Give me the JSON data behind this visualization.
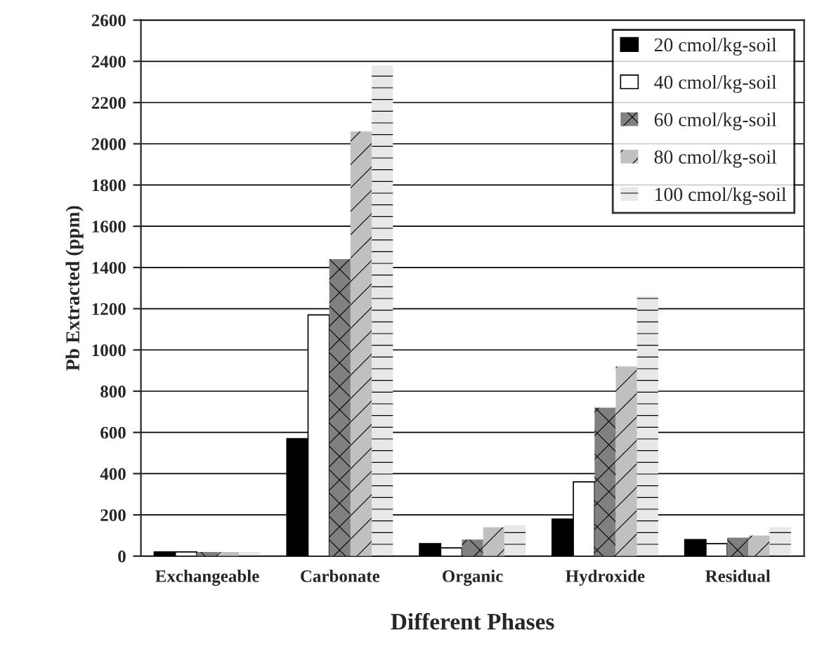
{
  "chart_data": {
    "type": "bar",
    "xlabel": "Different Phases",
    "ylabel": "Pb Extracted (ppm)",
    "categories": [
      "Exchangeable",
      "Carbonate",
      "Organic",
      "Hydroxide",
      "Residual"
    ],
    "series": [
      {
        "name": "20 cmol/kg-soil",
        "color": "#000000",
        "values": [
          20,
          570,
          60,
          180,
          80
        ]
      },
      {
        "name": "40 cmol/kg-soil",
        "color": "#ffffff",
        "values": [
          20,
          1170,
          40,
          360,
          60
        ]
      },
      {
        "name": "60 cmol/kg-soil",
        "color": "#808080",
        "values": [
          20,
          1440,
          80,
          720,
          90
        ]
      },
      {
        "name": "80 cmol/kg-soil",
        "color": "#c0c0c0",
        "values": [
          20,
          2060,
          140,
          920,
          100
        ]
      },
      {
        "name": "100 cmol/kg-soil",
        "color": "#e8e8e8",
        "values": [
          20,
          2380,
          150,
          1260,
          140
        ]
      }
    ],
    "ylim": [
      0,
      2600
    ],
    "yticks": [
      0,
      200,
      400,
      600,
      800,
      1000,
      1200,
      1400,
      1600,
      1800,
      2000,
      2200,
      2400,
      2600
    ],
    "grid": "y",
    "legend": "top right"
  }
}
